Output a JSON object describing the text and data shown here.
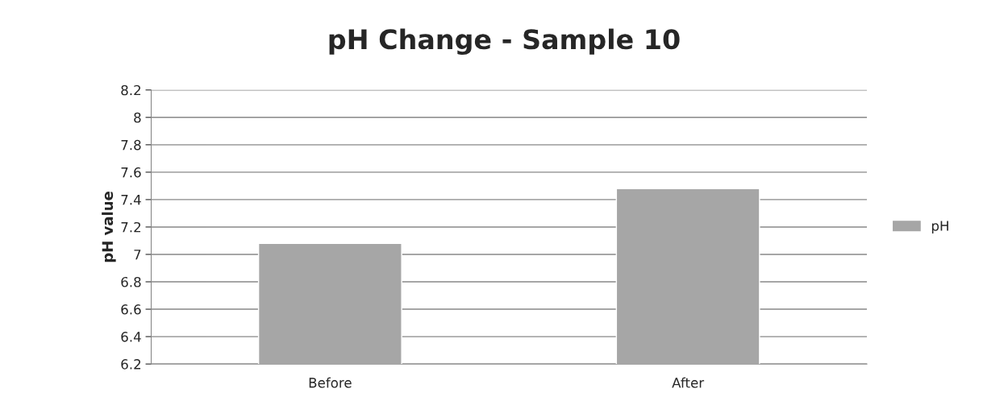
{
  "chart_data": {
    "type": "bar",
    "title": "pH Change - Sample 10",
    "ylabel": "pH value",
    "categories": [
      "Before",
      "After"
    ],
    "series": [
      {
        "name": "pH",
        "color": "#a6a6a6",
        "values": [
          7.08,
          7.48
        ]
      }
    ],
    "ylim": [
      6.2,
      8.2
    ],
    "yticks": [
      {
        "value": 6.2,
        "label": "6.2"
      },
      {
        "value": 6.4,
        "label": "6.4"
      },
      {
        "value": 6.6,
        "label": "6.6"
      },
      {
        "value": 6.8,
        "label": "6.8"
      },
      {
        "value": 7,
        "label": "7"
      },
      {
        "value": 7.2,
        "label": "7.2"
      },
      {
        "value": 7.4,
        "label": "7.4"
      },
      {
        "value": 7.6,
        "label": "7.6"
      },
      {
        "value": 7.8,
        "label": "7.8"
      },
      {
        "value": 8,
        "label": "8"
      },
      {
        "value": 8.2,
        "label": "8.2"
      }
    ],
    "grid": "y",
    "legend": "right"
  }
}
